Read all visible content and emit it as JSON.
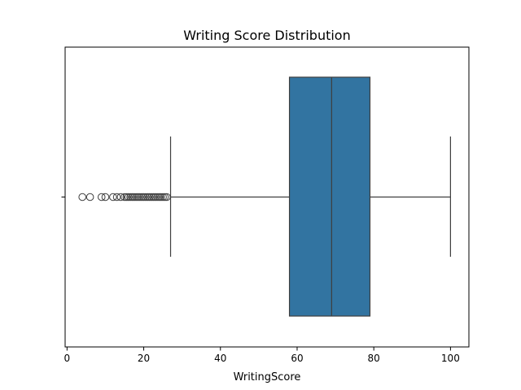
{
  "chart_data": {
    "type": "box",
    "orientation": "horizontal",
    "title": "Writing Score Distribution",
    "xlabel": "WritingScore",
    "ylabel": "",
    "xlim": [
      -0.5,
      104.8
    ],
    "xticks": [
      0,
      20,
      40,
      60,
      80,
      100
    ],
    "series": [
      {
        "whisker_low": 27,
        "q1": 58,
        "median": 69,
        "q3": 79,
        "whisker_high": 100,
        "outliers": [
          4,
          6,
          9,
          10,
          12,
          13,
          14,
          15,
          15.5,
          16,
          16.5,
          17,
          17.5,
          18,
          18.5,
          19,
          19.5,
          20,
          20.5,
          21,
          21.5,
          22,
          22.5,
          23,
          23.5,
          24,
          24.5,
          25,
          25.5,
          26
        ]
      }
    ],
    "grid": false,
    "legend": "none",
    "colors": {
      "box_fill": "#3274a1",
      "line": "#3f3f3f",
      "axes": "#000000"
    }
  }
}
